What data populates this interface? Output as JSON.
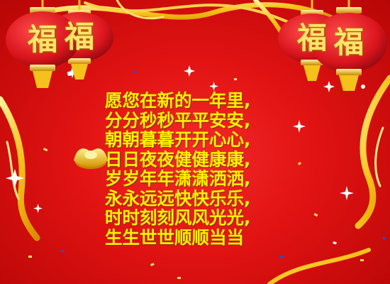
{
  "lanterns": [
    {
      "char": "福"
    },
    {
      "char": "福"
    },
    {
      "char": "福"
    },
    {
      "char": "福"
    }
  ],
  "blessing": {
    "lines": [
      "愿您在新的一年里,",
      "分分秒秒平平安安,",
      "朝朝暮暮开开心心,",
      "日日夜夜健健康康,",
      "岁岁年年潇潇洒洒,",
      "永永远远快快乐乐,",
      "时时刻刻风风光光,",
      "生生世世顺顺当当"
    ]
  },
  "colors": {
    "background": "#e01212",
    "text": "#fff200",
    "gold": "#f6c21b",
    "lantern": "#d8141c"
  }
}
